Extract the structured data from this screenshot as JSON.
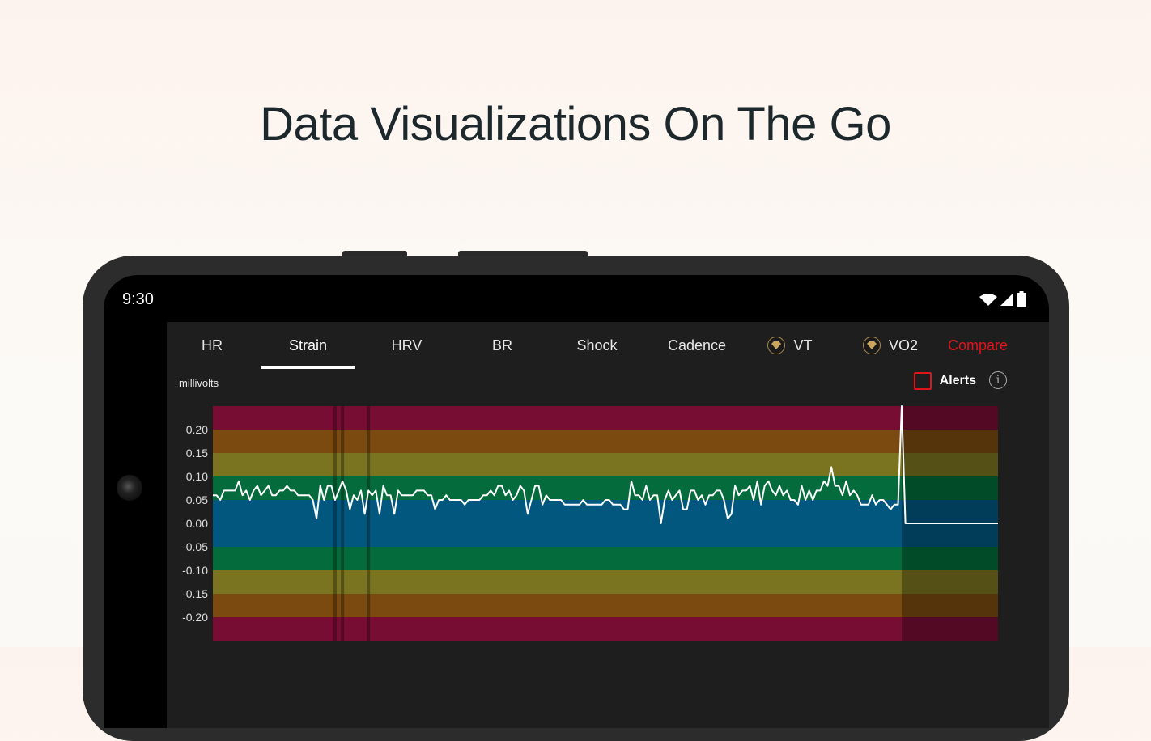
{
  "headline": "Data Visualizations On The Go",
  "status_bar": {
    "time": "9:30",
    "icons": [
      "wifi-icon",
      "cellular-signal-icon",
      "battery-icon"
    ]
  },
  "tabs": [
    {
      "label": "HR",
      "active": false,
      "premium": false
    },
    {
      "label": "Strain",
      "active": true,
      "premium": false
    },
    {
      "label": "HRV",
      "active": false,
      "premium": false
    },
    {
      "label": "BR",
      "active": false,
      "premium": false
    },
    {
      "label": "Shock",
      "active": false,
      "premium": false
    },
    {
      "label": "Cadence",
      "active": false,
      "premium": false
    },
    {
      "label": "VT",
      "active": false,
      "premium": true
    },
    {
      "label": "VO2",
      "active": false,
      "premium": true
    },
    {
      "label": "Compare",
      "active": false,
      "premium": false
    }
  ],
  "colors": {
    "accent": "#e0151b",
    "premium": "#a8884d",
    "background": "#1e1e1e"
  },
  "alerts": {
    "label": "Alerts",
    "checked": false
  },
  "chart_data": {
    "type": "line",
    "ylabel": "millivolts",
    "ylim": [
      -0.25,
      0.25
    ],
    "yticks": [
      "0.20",
      "0.15",
      "0.10",
      "0.05",
      "0.00",
      "-0.05",
      "-0.10",
      "-0.15",
      "-0.20"
    ],
    "grid": false,
    "bands": [
      {
        "from": 0.2,
        "to": 0.25,
        "color": "#780d34"
      },
      {
        "from": 0.15,
        "to": 0.2,
        "color": "#7a4a10"
      },
      {
        "from": 0.1,
        "to": 0.15,
        "color": "#7a731f"
      },
      {
        "from": 0.05,
        "to": 0.1,
        "color": "#046c3c"
      },
      {
        "from": -0.05,
        "to": 0.05,
        "color": "#02577f"
      },
      {
        "from": -0.1,
        "to": -0.05,
        "color": "#046c3c"
      },
      {
        "from": -0.15,
        "to": -0.1,
        "color": "#7a731f"
      },
      {
        "from": -0.2,
        "to": -0.15,
        "color": "#7a4a10"
      },
      {
        "from": -0.25,
        "to": -0.2,
        "color": "#780d34"
      }
    ],
    "markers": [
      33,
      35,
      42
    ],
    "highlight_start_index": 186,
    "values": [
      0.06,
      0.06,
      0.05,
      0.07,
      0.07,
      0.07,
      0.07,
      0.09,
      0.06,
      0.07,
      0.05,
      0.07,
      0.08,
      0.06,
      0.07,
      0.08,
      0.06,
      0.06,
      0.07,
      0.07,
      0.08,
      0.07,
      0.07,
      0.06,
      0.06,
      0.06,
      0.06,
      0.05,
      0.01,
      0.08,
      0.05,
      0.08,
      0.08,
      0.05,
      0.07,
      0.09,
      0.07,
      0.03,
      0.06,
      0.05,
      0.07,
      0.02,
      0.07,
      0.06,
      0.07,
      0.02,
      0.08,
      0.06,
      0.06,
      0.02,
      0.07,
      0.06,
      0.06,
      0.06,
      0.06,
      0.07,
      0.07,
      0.07,
      0.06,
      0.06,
      0.03,
      0.05,
      0.05,
      0.06,
      0.05,
      0.05,
      0.05,
      0.05,
      0.04,
      0.05,
      0.05,
      0.05,
      0.05,
      0.06,
      0.06,
      0.07,
      0.06,
      0.08,
      0.08,
      0.06,
      0.07,
      0.05,
      0.06,
      0.08,
      0.07,
      0.02,
      0.05,
      0.08,
      0.08,
      0.04,
      0.06,
      0.05,
      0.05,
      0.05,
      0.05,
      0.04,
      0.04,
      0.04,
      0.04,
      0.04,
      0.05,
      0.04,
      0.04,
      0.04,
      0.04,
      0.04,
      0.05,
      0.05,
      0.04,
      0.04,
      0.04,
      0.03,
      0.03,
      0.09,
      0.06,
      0.06,
      0.05,
      0.08,
      0.05,
      0.06,
      0.06,
      0.0,
      0.05,
      0.07,
      0.05,
      0.06,
      0.07,
      0.03,
      0.03,
      0.07,
      0.07,
      0.05,
      0.06,
      0.04,
      0.06,
      0.06,
      0.07,
      0.07,
      0.05,
      0.01,
      0.02,
      0.08,
      0.06,
      0.07,
      0.07,
      0.08,
      0.05,
      0.09,
      0.04,
      0.08,
      0.09,
      0.07,
      0.06,
      0.08,
      0.06,
      0.07,
      0.05,
      0.05,
      0.04,
      0.08,
      0.05,
      0.07,
      0.05,
      0.07,
      0.07,
      0.09,
      0.08,
      0.12,
      0.08,
      0.08,
      0.06,
      0.09,
      0.06,
      0.07,
      0.06,
      0.04,
      0.04,
      0.04,
      0.06,
      0.04,
      0.05,
      0.05,
      0.04,
      0.03,
      0.04,
      0.04,
      0.25,
      0.0,
      0.0,
      0.0,
      0.0,
      0.0,
      0.0,
      0.0,
      0.0,
      0.0,
      0.0,
      0.0,
      0.0,
      0.0,
      0.0,
      0.0,
      0.0,
      0.0,
      0.0,
      0.0,
      0.0,
      0.0,
      0.0,
      0.0,
      0.0,
      0.0,
      0.0
    ]
  }
}
